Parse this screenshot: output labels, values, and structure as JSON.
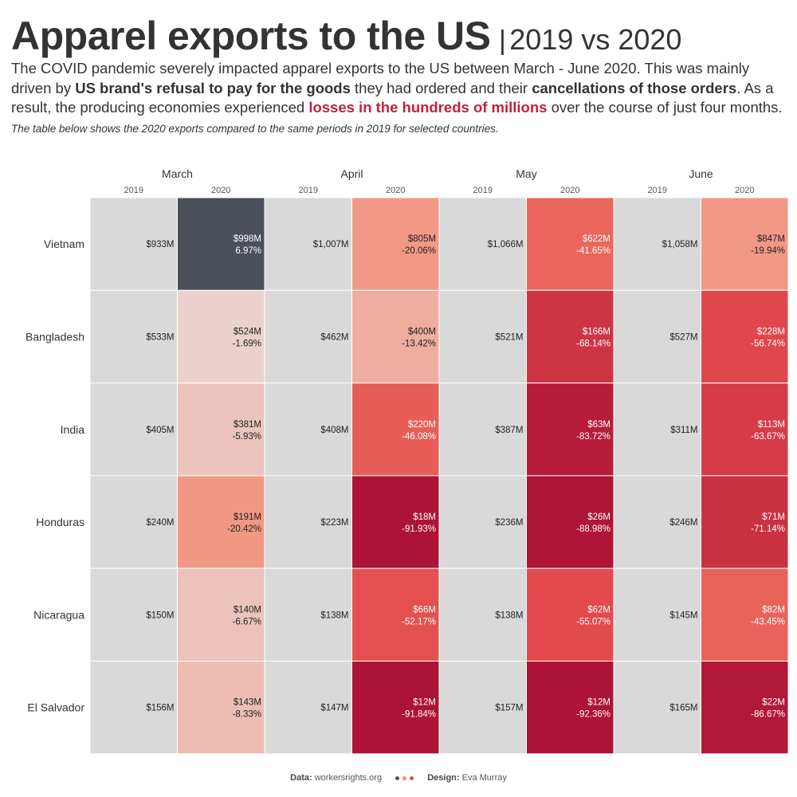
{
  "header": {
    "title": "Apparel exports to the US",
    "separator": "|",
    "subtitle": "2019 vs 2020"
  },
  "intro": {
    "p1": "The COVID pandemic severely impacted apparel exports to the US between March - June 2020. This was mainly driven by ",
    "b1": "US brand's refusal to pay for the goods",
    "p2": " they had ordered and their ",
    "b2": "cancellations of those orders",
    "p3": ". As a result, the producing economies experienced ",
    "h1": "losses in the hundreds of millions",
    "p4": " over the course of just four months.",
    "note": "The table below shows the 2020 exports compared to the same periods in 2019 for selected countries."
  },
  "footer": {
    "data_label": "Data:",
    "data_value": "workersrights.org",
    "design_label": "Design:",
    "design_value": "Eva Murray"
  },
  "colors": {
    "cell_2019": "#d9d9d9",
    "positive": "#4a4f5a",
    "text_dark": "#222222",
    "text_light": "#ffffff",
    "scale_light": "#ead6d4",
    "scale_mid": "#f38a72",
    "scale_strong": "#e24a4d",
    "scale_dark": "#ad1336",
    "dot1": "#555555",
    "dot2": "#f38a72",
    "dot3": "#e24a4d"
  },
  "chart_data": {
    "type": "heatmap",
    "months": [
      "March",
      "April",
      "May",
      "June"
    ],
    "years": [
      "2019",
      "2020"
    ],
    "countries": [
      "Vietnam",
      "Bangladesh",
      "India",
      "Honduras",
      "Nicaragua",
      "El Salvador"
    ],
    "rows": [
      {
        "country": "Vietnam",
        "v2019": [
          "$933M",
          "$1,007M",
          "$1,066M",
          "$1,058M"
        ],
        "v2020": [
          "$998M",
          "$805M",
          "$622M",
          "$847M"
        ],
        "change": [
          "6.97%",
          "-20.06%",
          "-41.65%",
          "-19.94%"
        ],
        "change_num": [
          6.97,
          -20.06,
          -41.65,
          -19.94
        ]
      },
      {
        "country": "Bangladesh",
        "v2019": [
          "$533M",
          "$462M",
          "$521M",
          "$527M"
        ],
        "v2020": [
          "$524M",
          "$400M",
          "$166M",
          "$228M"
        ],
        "change": [
          "-1.69%",
          "-13.42%",
          "-68.14%",
          "-56.74%"
        ],
        "change_num": [
          -1.69,
          -13.42,
          -68.14,
          -56.74
        ]
      },
      {
        "country": "India",
        "v2019": [
          "$405M",
          "$408M",
          "$387M",
          "$311M"
        ],
        "v2020": [
          "$381M",
          "$220M",
          "$63M",
          "$113M"
        ],
        "change": [
          "-5.93%",
          "-46.08%",
          "-83.72%",
          "-63.67%"
        ],
        "change_num": [
          -5.93,
          -46.08,
          -83.72,
          -63.67
        ]
      },
      {
        "country": "Honduras",
        "v2019": [
          "$240M",
          "$223M",
          "$236M",
          "$246M"
        ],
        "v2020": [
          "$191M",
          "$18M",
          "$26M",
          "$71M"
        ],
        "change": [
          "-20.42%",
          "-91.93%",
          "-88.98%",
          "-71.14%"
        ],
        "change_num": [
          -20.42,
          -91.93,
          -88.98,
          -71.14
        ]
      },
      {
        "country": "Nicaragua",
        "v2019": [
          "$150M",
          "$138M",
          "$138M",
          "$145M"
        ],
        "v2020": [
          "$140M",
          "$66M",
          "$62M",
          "$82M"
        ],
        "change": [
          "-6.67%",
          "-52.17%",
          "-55.07%",
          "-43.45%"
        ],
        "change_num": [
          -6.67,
          -52.17,
          -55.07,
          -43.45
        ]
      },
      {
        "country": "El Salvador",
        "v2019": [
          "$156M",
          "$147M",
          "$157M",
          "$165M"
        ],
        "v2020": [
          "$143M",
          "$12M",
          "$12M",
          "$22M"
        ],
        "change": [
          "-8.33%",
          "-91.84%",
          "-92.36%",
          "-86.67%"
        ],
        "change_num": [
          -8.33,
          -91.84,
          -92.36,
          -86.67
        ]
      }
    ]
  }
}
